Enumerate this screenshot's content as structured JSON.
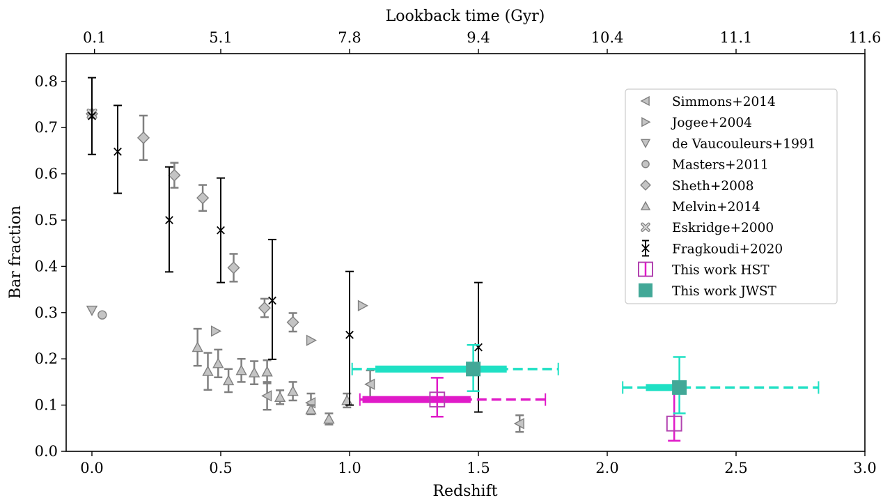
{
  "chart_data": {
    "type": "scatter",
    "xlabel": "Redshift",
    "ylabel": "Bar fraction",
    "top_xlabel": "Lookback time (Gyr)",
    "xlim": [
      -0.1,
      3.0
    ],
    "ylim": [
      0.0,
      0.86
    ],
    "grid": false,
    "legend_position": "top-right",
    "xticks": [
      0.0,
      0.5,
      1.0,
      1.5,
      2.0,
      2.5,
      3.0
    ],
    "xtick_labels": [
      "0.0",
      "0.5",
      "1.0",
      "1.5",
      "2.0",
      "2.5",
      "3.0"
    ],
    "yticks": [
      0.0,
      0.1,
      0.2,
      0.3,
      0.4,
      0.5,
      0.6,
      0.7,
      0.8
    ],
    "ytick_labels": [
      "0.0",
      "0.1",
      "0.2",
      "0.3",
      "0.4",
      "0.5",
      "0.6",
      "0.7",
      "0.8"
    ],
    "top_ticks": [
      {
        "z": 0.01,
        "label": "0.1"
      },
      {
        "z": 0.5,
        "label": "5.1"
      },
      {
        "z": 1.0,
        "label": "7.8"
      },
      {
        "z": 1.5,
        "label": "9.4"
      },
      {
        "z": 2.0,
        "label": "10.4"
      },
      {
        "z": 2.5,
        "label": "11.1"
      },
      {
        "z": 3.0,
        "label": "11.6"
      }
    ],
    "series": [
      {
        "name": "Simmons+2014",
        "marker": "triangle-left",
        "color": "#9e9e9e",
        "points": [
          {
            "x": 0.68,
            "y": 0.12,
            "err": 0.03
          },
          {
            "x": 0.85,
            "y": 0.105,
            "err": 0.02
          },
          {
            "x": 1.08,
            "y": 0.145,
            "err": 0.03
          },
          {
            "x": 1.66,
            "y": 0.06,
            "err": 0.018
          }
        ]
      },
      {
        "name": "Jogee+2004",
        "marker": "triangle-right",
        "color": "#9e9e9e",
        "points": [
          {
            "x": 0.48,
            "y": 0.26
          },
          {
            "x": 0.85,
            "y": 0.24
          },
          {
            "x": 1.05,
            "y": 0.315
          }
        ]
      },
      {
        "name": "de Vaucouleurs+1991",
        "marker": "triangle-down",
        "color": "#9e9e9e",
        "points": [
          {
            "x": 0.0,
            "y": 0.305
          }
        ]
      },
      {
        "name": "Masters+2011",
        "marker": "circle",
        "color": "#9e9e9e",
        "points": [
          {
            "x": 0.04,
            "y": 0.295
          }
        ]
      },
      {
        "name": "Sheth+2008",
        "marker": "diamond",
        "color": "#9e9e9e",
        "points": [
          {
            "x": 0.0,
            "y": 0.73
          },
          {
            "x": 0.2,
            "y": 0.678,
            "err": 0.048
          },
          {
            "x": 0.32,
            "y": 0.597,
            "err": 0.027
          },
          {
            "x": 0.43,
            "y": 0.548,
            "err": 0.028
          },
          {
            "x": 0.55,
            "y": 0.397,
            "err": 0.03
          },
          {
            "x": 0.67,
            "y": 0.31,
            "err": 0.02
          },
          {
            "x": 0.78,
            "y": 0.279,
            "err": 0.02
          }
        ]
      },
      {
        "name": "Melvin+2014",
        "marker": "triangle-up",
        "color": "#9e9e9e",
        "points": [
          {
            "x": 0.41,
            "y": 0.225,
            "err": 0.04
          },
          {
            "x": 0.45,
            "y": 0.173,
            "err": 0.04
          },
          {
            "x": 0.49,
            "y": 0.19,
            "err": 0.03
          },
          {
            "x": 0.53,
            "y": 0.153,
            "err": 0.025
          },
          {
            "x": 0.58,
            "y": 0.175,
            "err": 0.025
          },
          {
            "x": 0.63,
            "y": 0.17,
            "err": 0.025
          },
          {
            "x": 0.68,
            "y": 0.172,
            "err": 0.025
          },
          {
            "x": 0.73,
            "y": 0.117,
            "err": 0.015
          },
          {
            "x": 0.78,
            "y": 0.13,
            "err": 0.02
          },
          {
            "x": 0.85,
            "y": 0.09,
            "err": 0.01
          },
          {
            "x": 0.92,
            "y": 0.07,
            "err": 0.012
          },
          {
            "x": 0.99,
            "y": 0.11,
            "err": 0.015
          }
        ]
      },
      {
        "name": "Eskridge+2000",
        "marker": "x-filled",
        "color": "#9e9e9e",
        "points": [
          {
            "x": 0.0,
            "y": 0.73
          }
        ]
      },
      {
        "name": "Fragkoudi+2020",
        "marker": "x",
        "color": "#000000",
        "points": [
          {
            "x": 0.0,
            "y": 0.725,
            "yerr": [
              0.083,
              0.083
            ]
          },
          {
            "x": 0.1,
            "y": 0.648,
            "yerr": [
              0.09,
              0.1
            ]
          },
          {
            "x": 0.3,
            "y": 0.5,
            "yerr": [
              0.112,
              0.115
            ]
          },
          {
            "x": 0.5,
            "y": 0.478,
            "yerr": [
              0.113,
              0.113
            ]
          },
          {
            "x": 0.7,
            "y": 0.326,
            "yerr": [
              0.127,
              0.132
            ]
          },
          {
            "x": 1.0,
            "y": 0.252,
            "yerr": [
              0.152,
              0.137
            ]
          },
          {
            "x": 1.5,
            "y": 0.225,
            "yerr": [
              0.14,
              0.14
            ]
          }
        ]
      },
      {
        "name": "This work HST",
        "marker": "square-open",
        "color": "#e01ac8",
        "points": [
          {
            "x": 1.34,
            "y": 0.112,
            "yerr": [
              0.037,
              0.047
            ],
            "xerr_inner": [
              1.05,
              1.47
            ],
            "xerr_outer": [
              1.04,
              1.76
            ]
          },
          {
            "x": 2.26,
            "y": 0.06,
            "yerr": [
              0.037,
              0.083
            ]
          }
        ]
      },
      {
        "name": "This work JWST",
        "marker": "square",
        "color": "#1fe0c4",
        "points": [
          {
            "x": 1.48,
            "y": 0.178,
            "yerr": [
              0.048,
              0.052
            ],
            "xerr_inner": [
              1.1,
              1.61
            ],
            "xerr_outer": [
              1.01,
              1.81
            ]
          },
          {
            "x": 2.28,
            "y": 0.138,
            "yerr": [
              0.056,
              0.066
            ],
            "xerr_inner": [
              2.15,
              2.28
            ],
            "xerr_outer": [
              2.06,
              2.82
            ]
          }
        ]
      }
    ]
  }
}
